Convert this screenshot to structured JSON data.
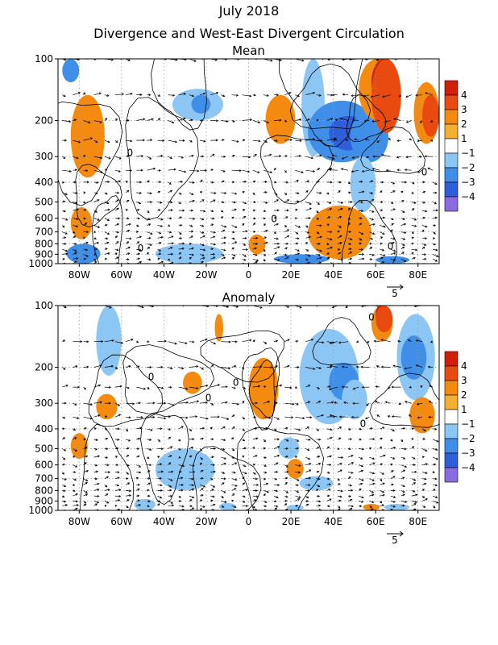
{
  "title_line1": "July 2018",
  "title_line2": "Divergence and West-East Divergent Circulation",
  "chart_data": [
    {
      "type": "heatmap",
      "panel_title": "Mean",
      "x_axis": {
        "range": [
          -90,
          90
        ],
        "ticks": [
          -80,
          -60,
          -40,
          -20,
          0,
          20,
          40,
          60,
          80
        ],
        "tick_labels": [
          "80W",
          "60W",
          "40W",
          "20W",
          "0",
          "20E",
          "40E",
          "60E",
          "80E"
        ]
      },
      "y_axis": {
        "scale": "log",
        "inverted": true,
        "range": [
          1000,
          100
        ],
        "unit": "hPa",
        "ticks": [
          100,
          200,
          300,
          400,
          500,
          600,
          700,
          800,
          900,
          1000
        ],
        "tick_labels": [
          "100",
          "200",
          "300",
          "400",
          "500",
          "600",
          "700",
          "800",
          "900",
          "1000"
        ]
      },
      "colorbar": {
        "levels": [
          -4,
          -3,
          -2,
          -1,
          1,
          2,
          3,
          4
        ],
        "level_labels": [
          "−4",
          "−3",
          "−2",
          "−1",
          "1",
          "2",
          "3",
          "4"
        ],
        "colors": [
          "#8a6ce0",
          "#2f5fd8",
          "#3f8fe8",
          "#8cc6f4",
          "#ffffff",
          "#f4b030",
          "#f48a10",
          "#e84a10",
          "#d01e08"
        ]
      },
      "vector_reference": {
        "label": "5"
      },
      "contour_labels": [
        {
          "text": "0",
          "x": -56,
          "p": 290
        },
        {
          "text": "0",
          "x": 12,
          "p": 610
        },
        {
          "text": "0",
          "x": -51,
          "p": 850
        },
        {
          "text": "0",
          "x": 83,
          "p": 360
        },
        {
          "text": "0",
          "x": 67,
          "p": 830
        }
      ],
      "anomalies": [
        {
          "x": [
            -88,
            -80
          ],
          "p": [
            100,
            130
          ],
          "level": -2
        },
        {
          "x": [
            -84,
            -68
          ],
          "p": [
            150,
            380
          ],
          "level": 2
        },
        {
          "x": [
            -84,
            -74
          ],
          "p": [
            530,
            760
          ],
          "level": 2
        },
        {
          "x": [
            -86,
            -70
          ],
          "p": [
            800,
            1000
          ],
          "level": -2
        },
        {
          "x": [
            -44,
            -12
          ],
          "p": [
            800,
            1000
          ],
          "level": -1
        },
        {
          "x": [
            -36,
            -12
          ],
          "p": [
            140,
            200
          ],
          "level": -1
        },
        {
          "x": [
            -27,
            -18
          ],
          "p": [
            150,
            185
          ],
          "level": -2
        },
        {
          "x": [
            8,
            22
          ],
          "p": [
            150,
            260
          ],
          "level": 2
        },
        {
          "x": [
            0,
            8
          ],
          "p": [
            720,
            900
          ],
          "level": 2
        },
        {
          "x": [
            12,
            38
          ],
          "p": [
            900,
            1000
          ],
          "level": -2
        },
        {
          "x": [
            25,
            36
          ],
          "p": [
            100,
            300
          ],
          "level": -1
        },
        {
          "x": [
            28,
            60
          ],
          "p": [
            160,
            320
          ],
          "level": -2
        },
        {
          "x": [
            38,
            56
          ],
          "p": [
            190,
            280
          ],
          "level": -3
        },
        {
          "x": [
            48,
            66
          ],
          "p": [
            180,
            320
          ],
          "level": -2
        },
        {
          "x": [
            48,
            60
          ],
          "p": [
            300,
            560
          ],
          "level": -1
        },
        {
          "x": [
            28,
            58
          ],
          "p": [
            520,
            950
          ],
          "level": 2
        },
        {
          "x": [
            52,
            70
          ],
          "p": [
            100,
            200
          ],
          "level": 2
        },
        {
          "x": [
            58,
            70
          ],
          "p": [
            100,
            170
          ],
          "level": 4
        },
        {
          "x": [
            58,
            72
          ],
          "p": [
            100,
            230
          ],
          "level": 3
        },
        {
          "x": [
            78,
            90
          ],
          "p": [
            130,
            260
          ],
          "level": 2
        },
        {
          "x": [
            82,
            90
          ],
          "p": [
            150,
            240
          ],
          "level": 3
        },
        {
          "x": [
            60,
            76
          ],
          "p": [
            920,
            1000
          ],
          "level": -2
        }
      ]
    },
    {
      "type": "heatmap",
      "panel_title": "Anomaly",
      "x_axis": {
        "range": [
          -90,
          90
        ],
        "ticks": [
          -80,
          -60,
          -40,
          -20,
          0,
          20,
          40,
          60,
          80
        ],
        "tick_labels": [
          "80W",
          "60W",
          "40W",
          "20W",
          "0",
          "20E",
          "40E",
          "60E",
          "80E"
        ]
      },
      "y_axis": {
        "scale": "log",
        "inverted": true,
        "range": [
          1000,
          100
        ],
        "unit": "hPa",
        "ticks": [
          100,
          200,
          300,
          400,
          500,
          600,
          700,
          800,
          900,
          1000
        ],
        "tick_labels": [
          "100",
          "200",
          "300",
          "400",
          "500",
          "600",
          "700",
          "800",
          "900",
          "1000"
        ]
      },
      "colorbar": {
        "levels": [
          -4,
          -3,
          -2,
          -1,
          1,
          2,
          3,
          4
        ],
        "level_labels": [
          "−4",
          "−3",
          "−2",
          "−1",
          "1",
          "2",
          "3",
          "4"
        ],
        "colors": [
          "#8a6ce0",
          "#2f5fd8",
          "#3f8fe8",
          "#8cc6f4",
          "#ffffff",
          "#f4b030",
          "#f48a10",
          "#e84a10",
          "#d01e08"
        ]
      },
      "vector_reference": {
        "label": "5"
      },
      "contour_labels": [
        {
          "text": "0",
          "x": -46,
          "p": 225
        },
        {
          "text": "0",
          "x": -19,
          "p": 285
        },
        {
          "text": "0",
          "x": -6,
          "p": 240
        },
        {
          "text": "0",
          "x": 54,
          "p": 380
        },
        {
          "text": "0",
          "x": 58,
          "p": 115
        }
      ],
      "anomalies": [
        {
          "x": [
            -72,
            -60
          ],
          "p": [
            100,
            220
          ],
          "level": -1
        },
        {
          "x": [
            -84,
            -76
          ],
          "p": [
            420,
            560
          ],
          "level": 2
        },
        {
          "x": [
            -72,
            -62
          ],
          "p": [
            270,
            360
          ],
          "level": 2
        },
        {
          "x": [
            -31,
            -22
          ],
          "p": [
            210,
            270
          ],
          "level": 2
        },
        {
          "x": [
            -44,
            -16
          ],
          "p": [
            500,
            800
          ],
          "level": -1
        },
        {
          "x": [
            -16,
            -12
          ],
          "p": [
            110,
            150
          ],
          "level": 2
        },
        {
          "x": [
            0,
            14
          ],
          "p": [
            180,
            360
          ],
          "level": 2
        },
        {
          "x": [
            14,
            24
          ],
          "p": [
            440,
            560
          ],
          "level": -1
        },
        {
          "x": [
            18,
            26
          ],
          "p": [
            560,
            700
          ],
          "level": 2
        },
        {
          "x": [
            24,
            40
          ],
          "p": [
            680,
            800
          ],
          "level": -1
        },
        {
          "x": [
            24,
            52
          ],
          "p": [
            130,
            380
          ],
          "level": -1
        },
        {
          "x": [
            38,
            52
          ],
          "p": [
            190,
            290
          ],
          "level": -2
        },
        {
          "x": [
            44,
            56
          ],
          "p": [
            230,
            360
          ],
          "level": -1
        },
        {
          "x": [
            58,
            68
          ],
          "p": [
            100,
            150
          ],
          "level": 2
        },
        {
          "x": [
            60,
            64
          ],
          "p": [
            100,
            125
          ],
          "level": 4
        },
        {
          "x": [
            60,
            68
          ],
          "p": [
            100,
            135
          ],
          "level": 3
        },
        {
          "x": [
            70,
            88
          ],
          "p": [
            110,
            290
          ],
          "level": -1
        },
        {
          "x": [
            72,
            84
          ],
          "p": [
            140,
            230
          ],
          "level": -2
        },
        {
          "x": [
            76,
            88
          ],
          "p": [
            280,
            420
          ],
          "level": 2
        },
        {
          "x": [
            -54,
            -44
          ],
          "p": [
            880,
            1000
          ],
          "level": -1
        },
        {
          "x": [
            -14,
            -6
          ],
          "p": [
            920,
            1000
          ],
          "level": -1
        },
        {
          "x": [
            18,
            26
          ],
          "p": [
            940,
            1000
          ],
          "level": -1
        },
        {
          "x": [
            54,
            62
          ],
          "p": [
            930,
            1000
          ],
          "level": 2
        },
        {
          "x": [
            64,
            76
          ],
          "p": [
            930,
            1000
          ],
          "level": -1
        }
      ]
    }
  ]
}
